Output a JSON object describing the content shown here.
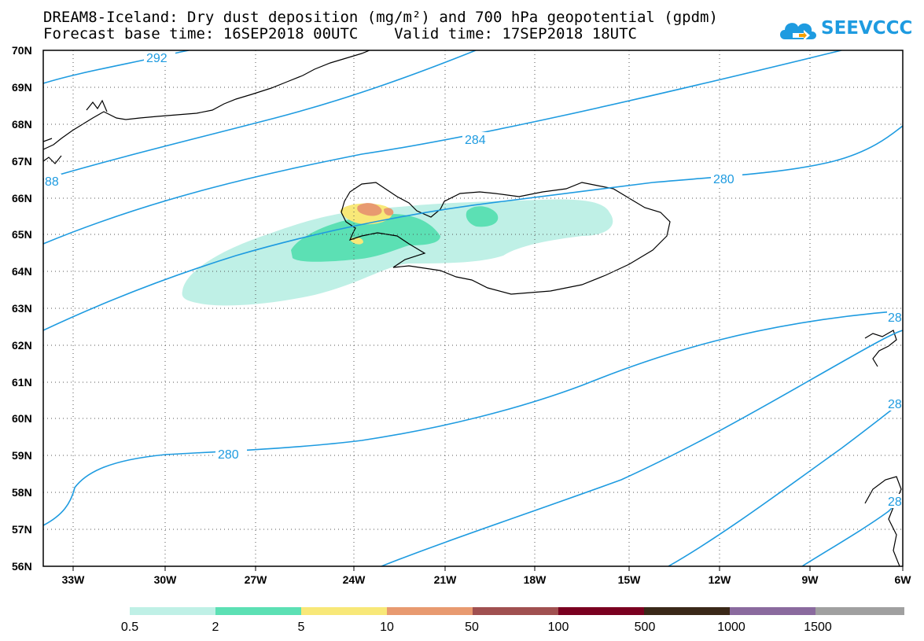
{
  "title": {
    "line1": "DREAM8-Iceland: Dry dust deposition (mg/m²) and 700 hPa geopotential (gpdm)",
    "line2": "Forecast base time: 16SEP2018 00UTC    Valid time: 17SEP2018 18UTC"
  },
  "logo": {
    "text": "SEEVCCC",
    "icon": "cloud-arrow-icon",
    "color": "#1e9be0"
  },
  "axes": {
    "lat_labels": [
      "70N",
      "69N",
      "68N",
      "67N",
      "66N",
      "65N",
      "64N",
      "63N",
      "62N",
      "61N",
      "60N",
      "59N",
      "58N",
      "57N",
      "56N"
    ],
    "lon_labels": [
      "33W",
      "30W",
      "27W",
      "24W",
      "21W",
      "18W",
      "15W",
      "12W",
      "9W",
      "6W"
    ],
    "lat_range": [
      56,
      70
    ],
    "lon_range": [
      -34.5,
      -6
    ]
  },
  "contours": {
    "color": "#1e9be0",
    "labels": [
      "292",
      "284",
      "280",
      "88",
      "280",
      "28",
      "28",
      "28"
    ]
  },
  "legend": {
    "colors": [
      "#bff0e6",
      "#5ce0b4",
      "#f8e878",
      "#e89a70",
      "#a05050",
      "#7a0020",
      "#3a2818",
      "#8a6a9e",
      "#a0a0a0"
    ],
    "labels": [
      "0.5",
      "2",
      "5",
      "10",
      "50",
      "100",
      "500",
      "1000",
      "1500"
    ]
  }
}
